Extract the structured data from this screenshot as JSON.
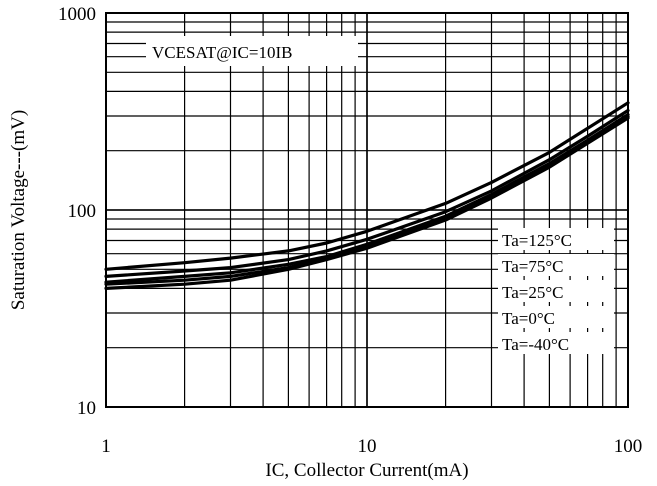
{
  "chart_data": {
    "type": "line",
    "title": "",
    "xlabel": "IC, Collector Current(mA)",
    "ylabel": "Saturation Voltage---(mV)",
    "xscale": "log",
    "yscale": "log",
    "xlim": [
      1,
      100
    ],
    "ylim": [
      10,
      1000
    ],
    "grid": true,
    "x_ticks": [
      {
        "value": 1,
        "label": "1"
      },
      {
        "value": 10,
        "label": "10"
      },
      {
        "value": 100,
        "label": "100"
      }
    ],
    "y_ticks": [
      {
        "value": 10,
        "label": "10"
      },
      {
        "value": 100,
        "label": "100"
      },
      {
        "value": 1000,
        "label": "1000"
      }
    ],
    "annotation": "VCESAT@IC=10IB",
    "legend_position": "bottom-right",
    "series": [
      {
        "name": "Ta=125°C",
        "x": [
          1,
          2,
          3,
          5,
          7,
          10,
          20,
          30,
          50,
          70,
          100
        ],
        "y": [
          50,
          54,
          57,
          62,
          68,
          78,
          108,
          138,
          196,
          260,
          350
        ]
      },
      {
        "name": "Ta=75°C",
        "x": [
          1,
          2,
          3,
          5,
          7,
          10,
          20,
          30,
          50,
          70,
          100
        ],
        "y": [
          46,
          49,
          51,
          56,
          62,
          71,
          98,
          125,
          180,
          237,
          320
        ]
      },
      {
        "name": "Ta=25°C",
        "x": [
          1,
          2,
          3,
          5,
          7,
          10,
          20,
          30,
          50,
          70,
          100
        ],
        "y": [
          43,
          46,
          48,
          53,
          58,
          67,
          93,
          120,
          172,
          226,
          305
        ]
      },
      {
        "name": "Ta=0°C",
        "x": [
          1,
          2,
          3,
          5,
          7,
          10,
          20,
          30,
          50,
          70,
          100
        ],
        "y": [
          42,
          44,
          46,
          51,
          57,
          65,
          91,
          117,
          168,
          221,
          298
        ]
      },
      {
        "name": "Ta=-40°C",
        "x": [
          1,
          2,
          3,
          5,
          7,
          10,
          20,
          30,
          50,
          70,
          100
        ],
        "y": [
          40,
          42,
          44,
          50,
          56,
          64,
          89,
          115,
          165,
          218,
          293
        ]
      }
    ]
  }
}
